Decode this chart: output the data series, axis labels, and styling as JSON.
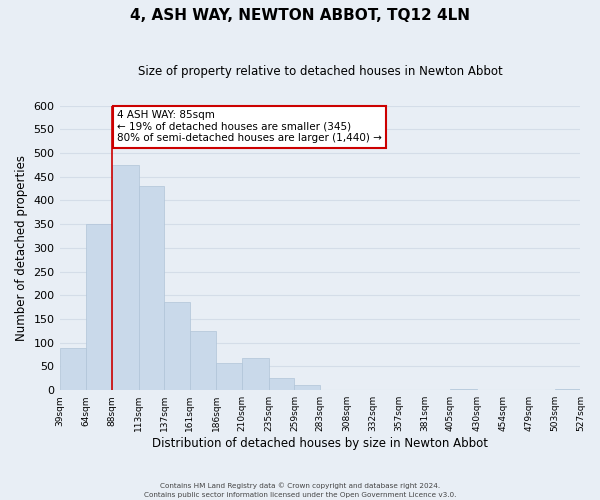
{
  "title": "4, ASH WAY, NEWTON ABBOT, TQ12 4LN",
  "subtitle": "Size of property relative to detached houses in Newton Abbot",
  "xlabel": "Distribution of detached houses by size in Newton Abbot",
  "ylabel": "Number of detached properties",
  "bar_left_edges": [
    39,
    64,
    88,
    113,
    137,
    161,
    186,
    210,
    235,
    259,
    283,
    308,
    332,
    357,
    381,
    405,
    430,
    454,
    479,
    503
  ],
  "bar_widths": [
    25,
    24,
    25,
    24,
    24,
    25,
    24,
    25,
    24,
    24,
    25,
    24,
    25,
    24,
    24,
    25,
    24,
    25,
    24,
    24
  ],
  "bar_heights": [
    90,
    350,
    475,
    430,
    185,
    125,
    58,
    67,
    25,
    10,
    0,
    0,
    0,
    0,
    0,
    2,
    0,
    0,
    0,
    2
  ],
  "bar_color": "#c9d9ea",
  "bar_edgecolor": "#b0c4d8",
  "tick_labels": [
    "39sqm",
    "64sqm",
    "88sqm",
    "113sqm",
    "137sqm",
    "161sqm",
    "186sqm",
    "210sqm",
    "235sqm",
    "259sqm",
    "283sqm",
    "308sqm",
    "332sqm",
    "357sqm",
    "381sqm",
    "405sqm",
    "430sqm",
    "454sqm",
    "479sqm",
    "503sqm",
    "527sqm"
  ],
  "ylim": [
    0,
    600
  ],
  "yticks": [
    0,
    50,
    100,
    150,
    200,
    250,
    300,
    350,
    400,
    450,
    500,
    550,
    600
  ],
  "property_line_x": 88,
  "property_line_color": "#cc0000",
  "annotation_line1": "4 ASH WAY: 85sqm",
  "annotation_line2": "← 19% of detached houses are smaller (345)",
  "annotation_line3": "80% of semi-detached houses are larger (1,440) →",
  "annotation_box_edgecolor": "#cc0000",
  "annotation_box_facecolor": "#ffffff",
  "footer_text": "Contains HM Land Registry data © Crown copyright and database right 2024.\nContains public sector information licensed under the Open Government Licence v3.0.",
  "grid_color": "#d4dde8",
  "background_color": "#e8eef5",
  "plot_bg_color": "#e8eef5"
}
